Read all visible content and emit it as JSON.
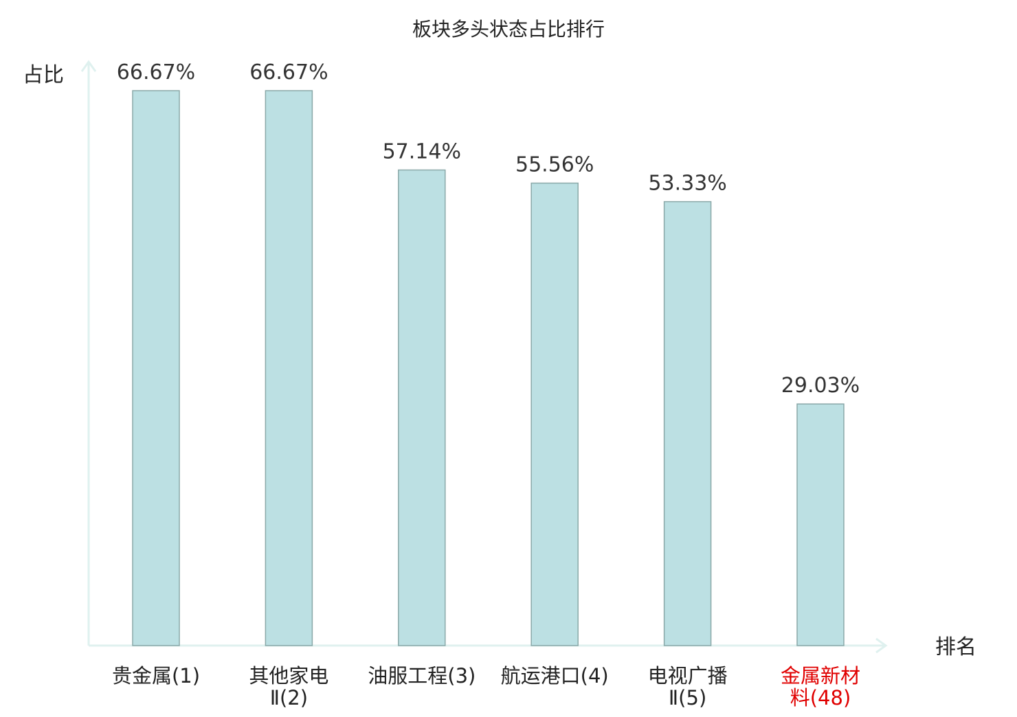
{
  "chart_data": {
    "type": "bar",
    "title": "板块多头状态占比排行",
    "ylabel": "占比",
    "xlabel": "排名",
    "ylim": [
      0,
      70
    ],
    "grid": false,
    "legend": "none",
    "categories": [
      {
        "lines": [
          "贵金属(1)"
        ],
        "highlight": false
      },
      {
        "lines": [
          "其他家电",
          "Ⅱ(2)"
        ],
        "highlight": false
      },
      {
        "lines": [
          "油服工程(3)"
        ],
        "highlight": false
      },
      {
        "lines": [
          "航运港口(4)"
        ],
        "highlight": false
      },
      {
        "lines": [
          "电视广播",
          "Ⅱ(5)"
        ],
        "highlight": false
      },
      {
        "lines": [
          "金属新材",
          "料(48)"
        ],
        "highlight": true
      }
    ],
    "values": [
      66.67,
      66.67,
      57.14,
      55.56,
      53.33,
      29.03
    ],
    "value_labels": [
      "66.67%",
      "66.67%",
      "57.14%",
      "55.56%",
      "53.33%",
      "29.03%"
    ],
    "colors": {
      "bar_fill": "#bce0e3",
      "bar_stroke": "#8aa8a8",
      "axis": "#dff1ef",
      "text": "#222222",
      "highlight_text": "#e00000"
    }
  }
}
